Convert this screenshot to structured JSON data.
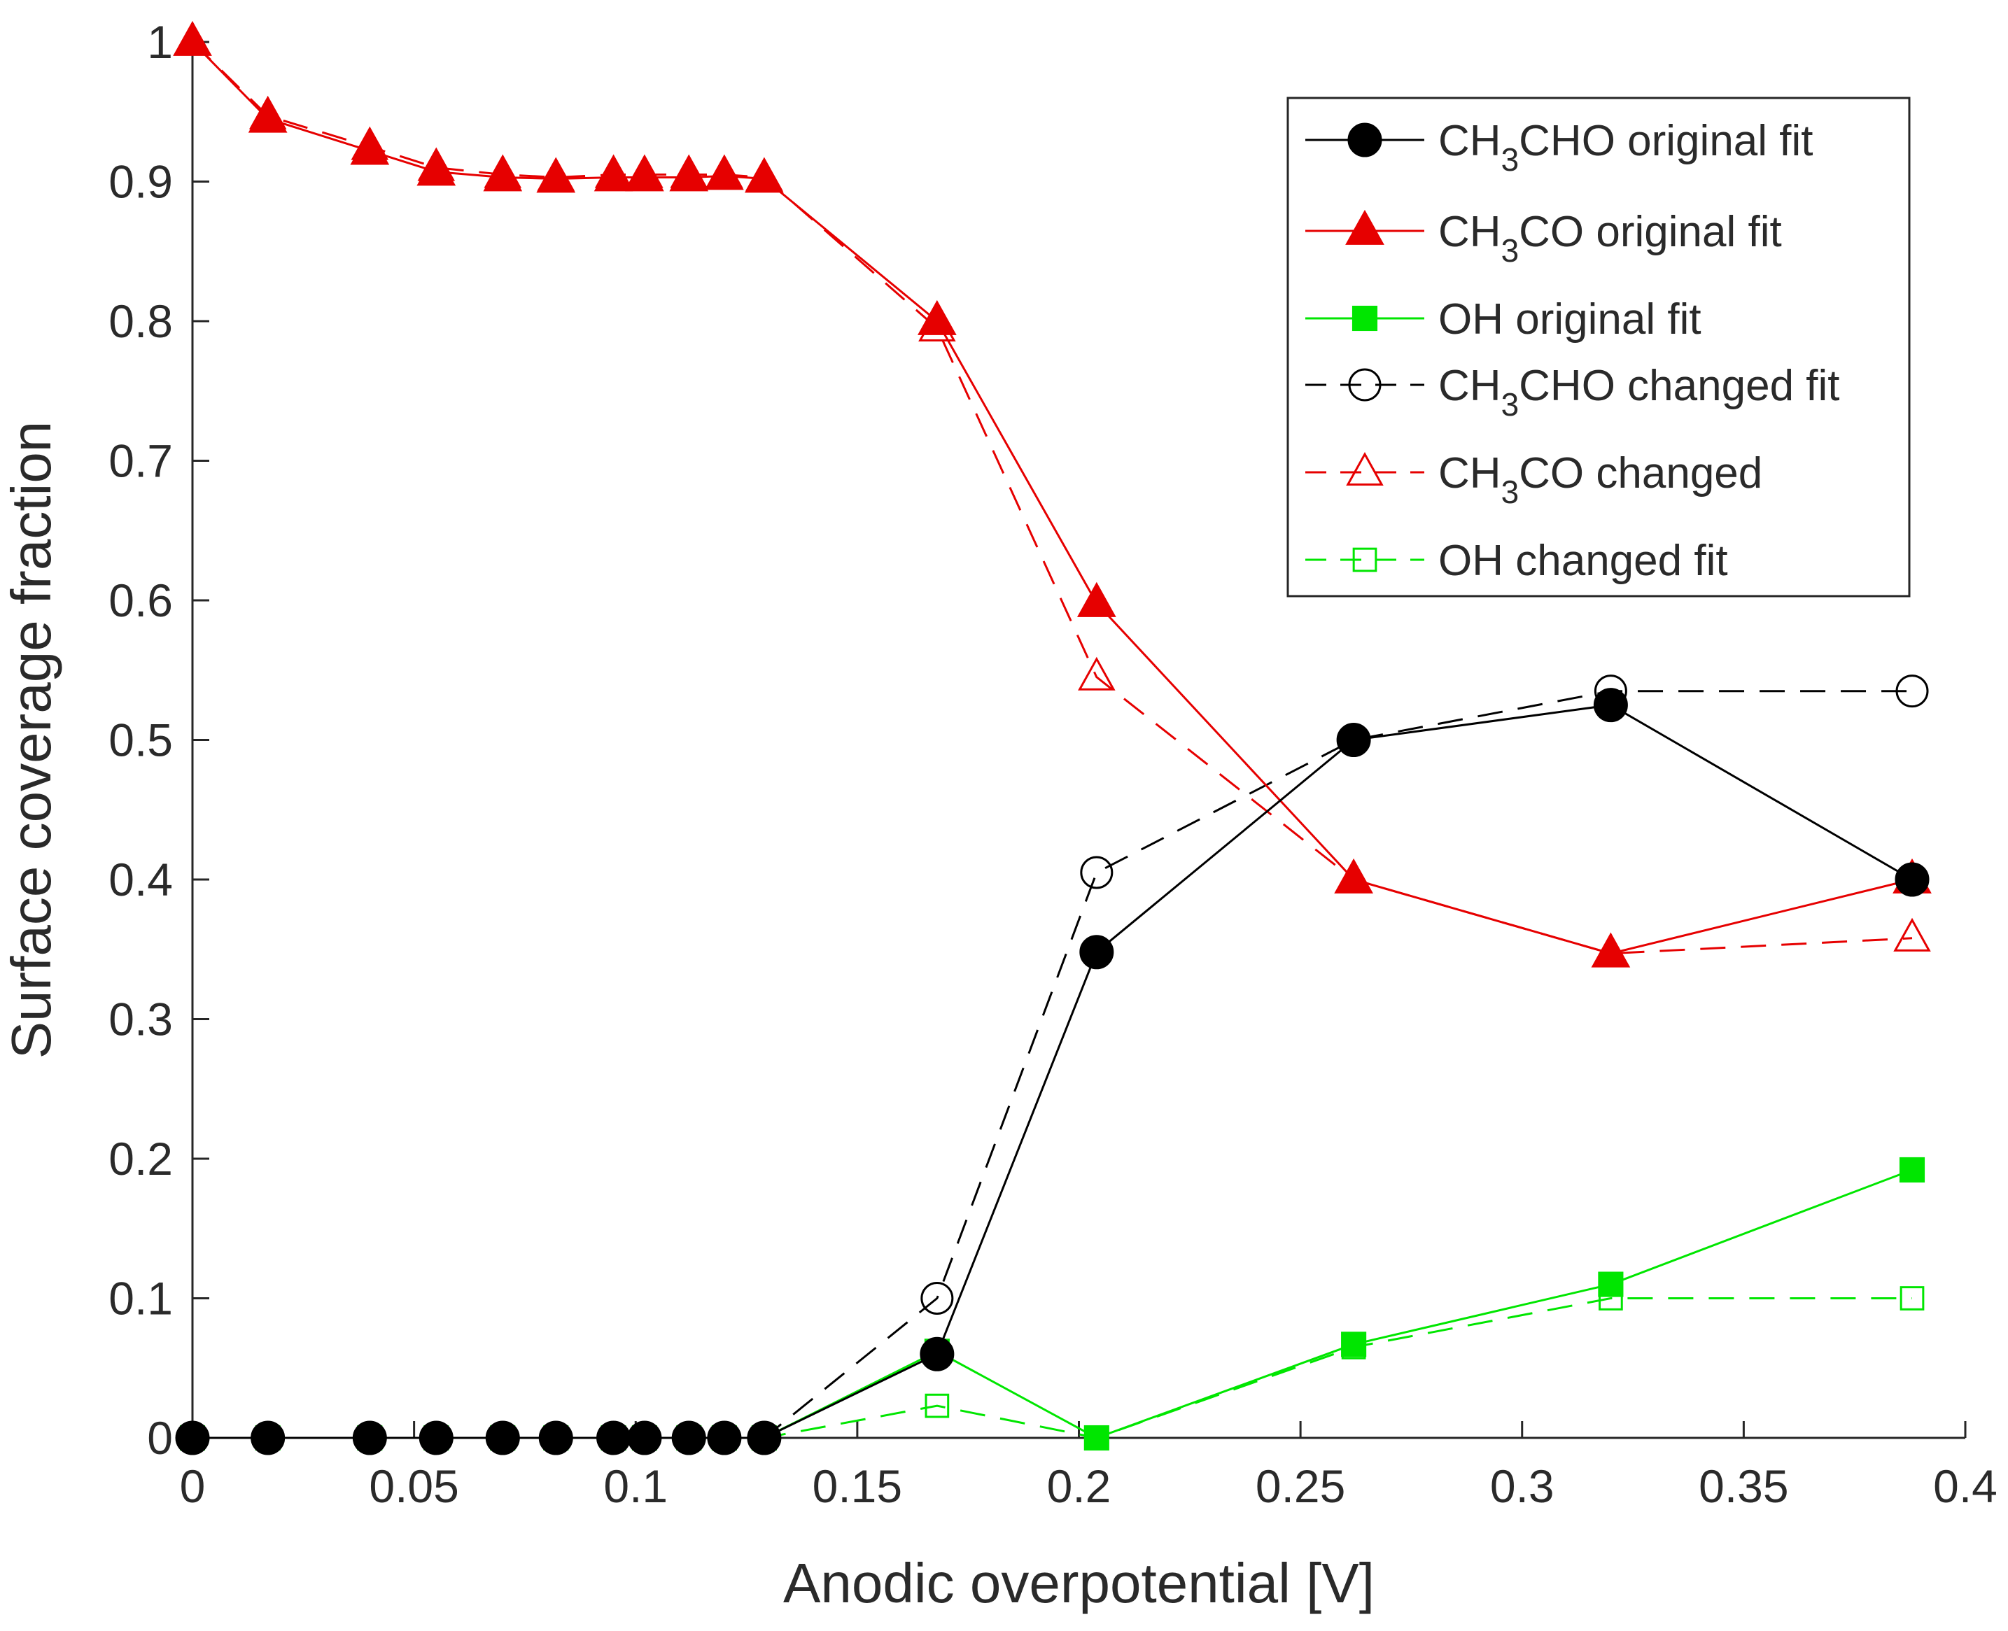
{
  "chart_data": {
    "type": "line",
    "title": "",
    "xlabel": "Anodic overpotential [V]",
    "ylabel": "Surface coverage fraction",
    "xlim": [
      0,
      0.4
    ],
    "ylim": [
      0,
      1
    ],
    "xticks": [
      0,
      0.05,
      0.1,
      0.15,
      0.2,
      0.25,
      0.3,
      0.35,
      0.4
    ],
    "xtick_labels": [
      "0",
      "0.05",
      "0.1",
      "0.15",
      "0.2",
      "0.25",
      "0.3",
      "0.35",
      "0.4"
    ],
    "yticks": [
      0,
      0.1,
      0.2,
      0.3,
      0.4,
      0.5,
      0.6,
      0.7,
      0.8,
      0.9,
      1
    ],
    "ytick_labels": [
      "0",
      "0.1",
      "0.2",
      "0.3",
      "0.4",
      "0.5",
      "0.6",
      "0.7",
      "0.8",
      "0.9",
      "1"
    ],
    "grid": false,
    "legend_position": "top-right",
    "series": [
      {
        "name": "CH3CHO original fit",
        "legend": {
          "pre": "CH",
          "sub": "3",
          "post": "CHO original fit"
        },
        "color": "#000000",
        "line": "solid",
        "marker": "circle",
        "filled": true,
        "x": [
          0,
          0.017,
          0.04,
          0.055,
          0.07,
          0.082,
          0.095,
          0.102,
          0.112,
          0.12,
          0.129,
          0.168,
          0.204,
          0.262,
          0.32,
          0.388
        ],
        "y": [
          0,
          0,
          0,
          0,
          0,
          0,
          0,
          0,
          0,
          0,
          0,
          0.06,
          0.348,
          0.5,
          0.525,
          0.4
        ]
      },
      {
        "name": "CH3CO original fit",
        "legend": {
          "pre": "CH",
          "sub": "3",
          "post": "CO original fit"
        },
        "color": "#e60000",
        "line": "solid",
        "marker": "triangle",
        "filled": true,
        "x": [
          0,
          0.017,
          0.04,
          0.055,
          0.07,
          0.082,
          0.095,
          0.102,
          0.112,
          0.12,
          0.129,
          0.168,
          0.204,
          0.262,
          0.32,
          0.388
        ],
        "y": [
          1,
          0.945,
          0.922,
          0.907,
          0.903,
          0.902,
          0.903,
          0.903,
          0.903,
          0.904,
          0.902,
          0.8,
          0.598,
          0.4,
          0.347,
          0.4
        ]
      },
      {
        "name": "OH original fit",
        "legend": {
          "pre": "OH original fit",
          "sub": "",
          "post": ""
        },
        "color": "#00e600",
        "line": "solid",
        "marker": "square",
        "filled": true,
        "x": [
          0,
          0.017,
          0.04,
          0.055,
          0.07,
          0.082,
          0.095,
          0.102,
          0.112,
          0.12,
          0.129,
          0.168,
          0.204,
          0.262,
          0.32,
          0.388
        ],
        "y": [
          0,
          0,
          0,
          0,
          0,
          0,
          0,
          0,
          0,
          0,
          0,
          0.062,
          0,
          0.067,
          0.11,
          0.192
        ]
      },
      {
        "name": "CH3CHO changed fit",
        "legend": {
          "pre": "CH",
          "sub": "3",
          "post": "CHO changed fit"
        },
        "color": "#000000",
        "line": "dashed",
        "marker": "circle",
        "filled": false,
        "x": [
          0,
          0.017,
          0.04,
          0.055,
          0.07,
          0.082,
          0.095,
          0.102,
          0.112,
          0.12,
          0.129,
          0.168,
          0.204,
          0.262,
          0.32,
          0.388
        ],
        "y": [
          0,
          0,
          0,
          0,
          0,
          0,
          0,
          0,
          0,
          0,
          0,
          0.1,
          0.405,
          0.5,
          0.535,
          0.535
        ]
      },
      {
        "name": "CH3CO changed",
        "legend": {
          "pre": "CH",
          "sub": "3",
          "post": "CO changed"
        },
        "color": "#e60000",
        "line": "dashed",
        "marker": "triangle",
        "filled": false,
        "x": [
          0,
          0.017,
          0.04,
          0.055,
          0.07,
          0.082,
          0.095,
          0.102,
          0.112,
          0.12,
          0.129,
          0.168,
          0.204,
          0.262,
          0.32,
          0.388
        ],
        "y": [
          1,
          0.947,
          0.925,
          0.91,
          0.905,
          0.903,
          0.905,
          0.905,
          0.905,
          0.905,
          0.903,
          0.795,
          0.545,
          0.4,
          0.347,
          0.358
        ]
      },
      {
        "name": "OH changed fit",
        "legend": {
          "pre": "OH changed fit",
          "sub": "",
          "post": ""
        },
        "color": "#00e600",
        "line": "dashed",
        "marker": "square",
        "filled": false,
        "x": [
          0,
          0.017,
          0.04,
          0.055,
          0.07,
          0.082,
          0.095,
          0.102,
          0.112,
          0.12,
          0.129,
          0.168,
          0.204,
          0.262,
          0.32,
          0.388
        ],
        "y": [
          0,
          0,
          0,
          0,
          0,
          0,
          0,
          0,
          0,
          0,
          0,
          0.023,
          0,
          0.065,
          0.1,
          0.1
        ]
      }
    ]
  }
}
